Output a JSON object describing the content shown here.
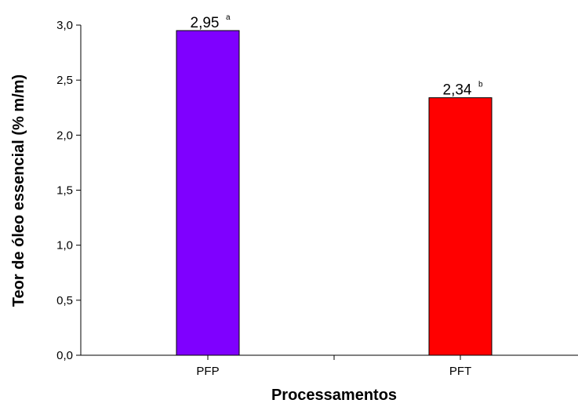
{
  "chart_data": {
    "type": "bar",
    "categories": [
      "PFP",
      "PFT"
    ],
    "values": [
      2.95,
      2.34
    ],
    "value_labels": [
      "2,95",
      "2,34"
    ],
    "value_superscripts": [
      "a",
      "b"
    ],
    "colors": [
      "#7f00ff",
      "#ff0000"
    ],
    "xlabel": "Processamentos",
    "ylabel": "Teor de óleo essencial (% m/m)",
    "ylim": [
      0,
      3
    ],
    "yticks": [
      0,
      0.5,
      1,
      1.5,
      2,
      2.5,
      3
    ],
    "ytick_labels": [
      "0,0",
      "0,5",
      "1,0",
      "1,5",
      "2,0",
      "2,5",
      "3,0"
    ],
    "grid": false,
    "legend": "none"
  }
}
